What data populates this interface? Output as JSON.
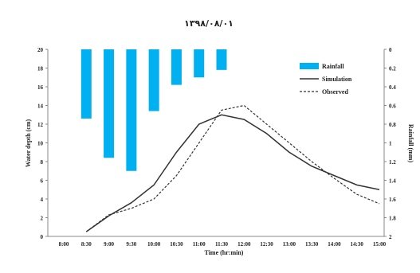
{
  "chart_data": {
    "type": "line",
    "title": "۱۳۹۸/۰۸/۰۱",
    "xlabel": "Time (hr:min)",
    "ylabel": "Water depth (cm)",
    "y2label": "Rainfall (mm)",
    "categories": [
      "8:00",
      "8:30",
      "9:00",
      "9:30",
      "10:00",
      "10:30",
      "11:00",
      "11:30",
      "12:00",
      "12:30",
      "13:00",
      "13:30",
      "14:00",
      "14:30",
      "15:00"
    ],
    "ylim": [
      0,
      20
    ],
    "yticks": [
      "0",
      "2",
      "4",
      "6",
      "8",
      "10",
      "12",
      "14",
      "16",
      "18",
      "20"
    ],
    "y2lim": [
      0,
      2
    ],
    "y2reversed": true,
    "y2ticks": [
      "0",
      "0.2",
      "0.4",
      "0.6",
      "0.8",
      "1",
      "1.2",
      "1.4",
      "1.6",
      "1.8",
      "2"
    ],
    "grid": false,
    "legend_position": "top-right",
    "rainfall": {
      "name": "Rainfall",
      "color": "#00b0f0",
      "categories": [
        "8:30",
        "9:00",
        "9:30",
        "10:00",
        "10:30",
        "11:00",
        "11:30"
      ],
      "values": [
        0.74,
        1.16,
        1.3,
        0.66,
        0.38,
        0.3,
        0.22
      ]
    },
    "series": [
      {
        "name": "Simulation",
        "style": "solid",
        "color": "#333333",
        "x": [
          "8:30",
          "9:00",
          "9:30",
          "10:00",
          "10:30",
          "11:00",
          "11:30",
          "12:00",
          "12:30",
          "13:00",
          "13:30",
          "14:00",
          "14:30",
          "15:00"
        ],
        "values": [
          0.5,
          2.2,
          3.6,
          5.5,
          9.0,
          12.0,
          13.0,
          12.5,
          11.0,
          9.0,
          7.5,
          6.5,
          5.5,
          5.0
        ]
      },
      {
        "name": "Observed",
        "style": "dashed",
        "color": "#333333",
        "x": [
          "8:30",
          "9:00",
          "9:30",
          "10:00",
          "10:30",
          "11:00",
          "11:30",
          "12:00",
          "12:30",
          "13:00",
          "13:30",
          "14:00",
          "14:30",
          "15:00"
        ],
        "values": [
          0.5,
          2.3,
          3.0,
          4.0,
          6.5,
          10.0,
          13.5,
          14.0,
          12.0,
          10.0,
          8.0,
          6.2,
          4.5,
          3.5
        ]
      }
    ]
  }
}
